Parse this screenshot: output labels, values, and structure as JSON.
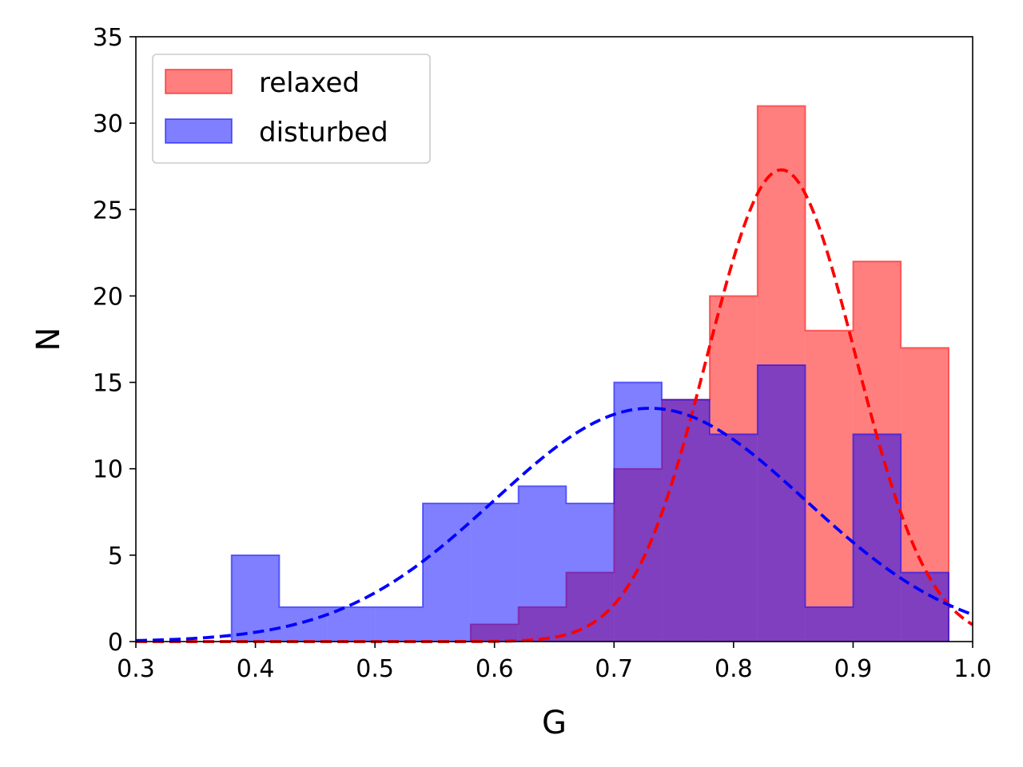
{
  "chart_data": {
    "type": "bar",
    "xlabel": "G",
    "ylabel": "N",
    "xlim": [
      0.3,
      1.0
    ],
    "ylim": [
      0,
      35
    ],
    "xticks": [
      "0.3",
      "0.4",
      "0.5",
      "0.6",
      "0.7",
      "0.8",
      "0.9",
      "1.0"
    ],
    "yticks": [
      "0",
      "5",
      "10",
      "15",
      "20",
      "25",
      "30",
      "35"
    ],
    "grid": false,
    "legend_position": "top-left",
    "bin_edges": [
      0.38,
      0.42,
      0.46,
      0.5,
      0.54,
      0.58,
      0.62,
      0.66,
      0.7,
      0.74,
      0.78,
      0.82,
      0.86,
      0.9,
      0.94,
      0.98
    ],
    "series": [
      {
        "name": "relaxed",
        "color": "#ff0000",
        "counts": [
          0,
          0,
          0,
          0,
          0,
          1,
          2,
          4,
          10,
          14,
          20,
          31,
          18,
          22,
          17
        ],
        "fit_curve": {
          "style": "dashed",
          "color": "#ff0000",
          "mean": 0.84,
          "sigma": 0.062,
          "amplitude": 27.3
        }
      },
      {
        "name": "disturbed",
        "color": "#0000ff",
        "counts": [
          5,
          2,
          2,
          2,
          8,
          8,
          9,
          8,
          15,
          14,
          12,
          16,
          2,
          12,
          4
        ],
        "fit_curve": {
          "style": "dashed",
          "color": "#0000ff",
          "mean": 0.73,
          "sigma": 0.13,
          "amplitude": 13.5
        }
      }
    ]
  }
}
